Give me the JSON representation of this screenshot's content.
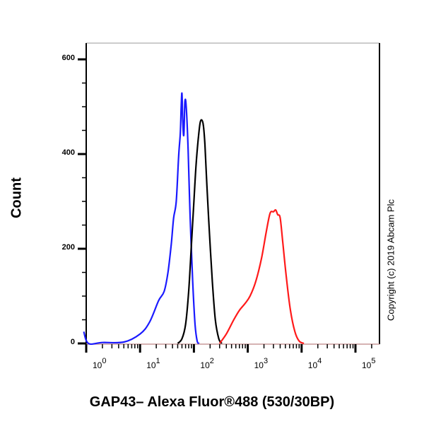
{
  "chart_data": {
    "type": "line",
    "title": "",
    "xlabel": "GAP43– Alexa Fluor®488 (530/30BP)",
    "ylabel": "Count",
    "xscale": "log",
    "xlim": [
      1,
      200000
    ],
    "ylim": [
      0,
      640
    ],
    "yticks": [
      0,
      200,
      400,
      600
    ],
    "ytick_labels": [
      "0",
      "200",
      "400",
      "600"
    ],
    "xticks": [
      1,
      10,
      100,
      1000,
      10000,
      100000
    ],
    "xtick_labels": [
      "10^0",
      "10^1",
      "10^2",
      "10^3",
      "10^4",
      "10^5"
    ],
    "grid": false,
    "legend": null,
    "annotation": "Copyright (c) 2019 Abcam Plc",
    "series": [
      {
        "name": "blue",
        "color": "#1a1aff",
        "x": [
          0.9,
          1.1,
          2,
          5,
          10,
          15,
          22,
          28,
          33,
          38,
          42,
          47,
          52,
          56,
          58,
          60,
          62,
          65,
          68,
          72,
          78,
          85,
          95,
          105,
          115,
          125
        ],
        "y": [
          25,
          0,
          2,
          3,
          20,
          45,
          90,
          110,
          150,
          210,
          265,
          300,
          395,
          445,
          500,
          528,
          470,
          440,
          510,
          500,
          410,
          270,
          130,
          40,
          5,
          0
        ]
      },
      {
        "name": "black",
        "color": "#000000",
        "x": [
          50,
          60,
          70,
          80,
          90,
          100,
          110,
          120,
          130,
          140,
          150,
          160,
          175,
          195,
          220,
          250,
          290,
          330
        ],
        "y": [
          0,
          10,
          40,
          110,
          210,
          300,
          380,
          430,
          465,
          472,
          460,
          420,
          330,
          230,
          130,
          50,
          10,
          0
        ]
      },
      {
        "name": "red",
        "color": "#ff1a1a",
        "x": [
          300,
          400,
          550,
          700,
          900,
          1100,
          1400,
          1800,
          2200,
          2600,
          3000,
          3300,
          3600,
          4000,
          4500,
          5200,
          6200,
          7500,
          9000,
          11000
        ],
        "y": [
          0,
          20,
          50,
          70,
          85,
          100,
          130,
          180,
          235,
          275,
          278,
          282,
          272,
          265,
          210,
          140,
          70,
          25,
          5,
          0
        ]
      }
    ]
  },
  "axes": {
    "y_title": "Count",
    "x_title": "GAP43– Alexa Fluor®488 (530/30BP)",
    "y_ticks": [
      "0",
      "200",
      "400",
      "600"
    ],
    "x_ticks": [
      {
        "base": "10",
        "exp": "0"
      },
      {
        "base": "10",
        "exp": "1"
      },
      {
        "base": "10",
        "exp": "2"
      },
      {
        "base": "10",
        "exp": "3"
      },
      {
        "base": "10",
        "exp": "4"
      },
      {
        "base": "10",
        "exp": "5"
      }
    ]
  },
  "copyright": "Copyright (c) 2019 Abcam Plc"
}
